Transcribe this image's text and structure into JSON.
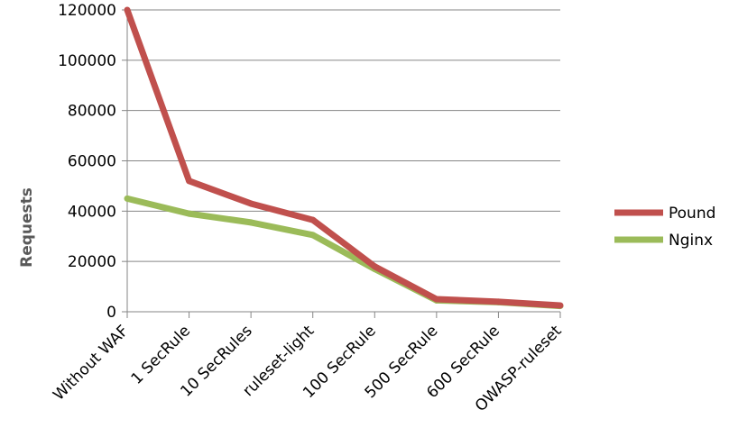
{
  "chart_data": {
    "type": "line",
    "title": "",
    "xlabel": "",
    "ylabel": "Requests",
    "categories": [
      "Without WAF",
      "1 SecRule",
      "10 SecRules",
      "ruleset-light",
      "100 SecRule",
      "500 SecRule",
      "600 SecRule",
      "OWASP-ruleset"
    ],
    "ylim": [
      0,
      120000
    ],
    "yticks": [
      0,
      20000,
      40000,
      60000,
      80000,
      100000,
      120000
    ],
    "grid": true,
    "legend_position": "right",
    "series": [
      {
        "name": "Pound",
        "color": "#C0504D",
        "values": [
          120000,
          52000,
          43000,
          36500,
          18000,
          5000,
          4000,
          2500
        ]
      },
      {
        "name": "Nginx",
        "color": "#9BBB59",
        "values": [
          45000,
          39000,
          35500,
          30500,
          17000,
          4500,
          3800,
          2300
        ]
      }
    ]
  }
}
